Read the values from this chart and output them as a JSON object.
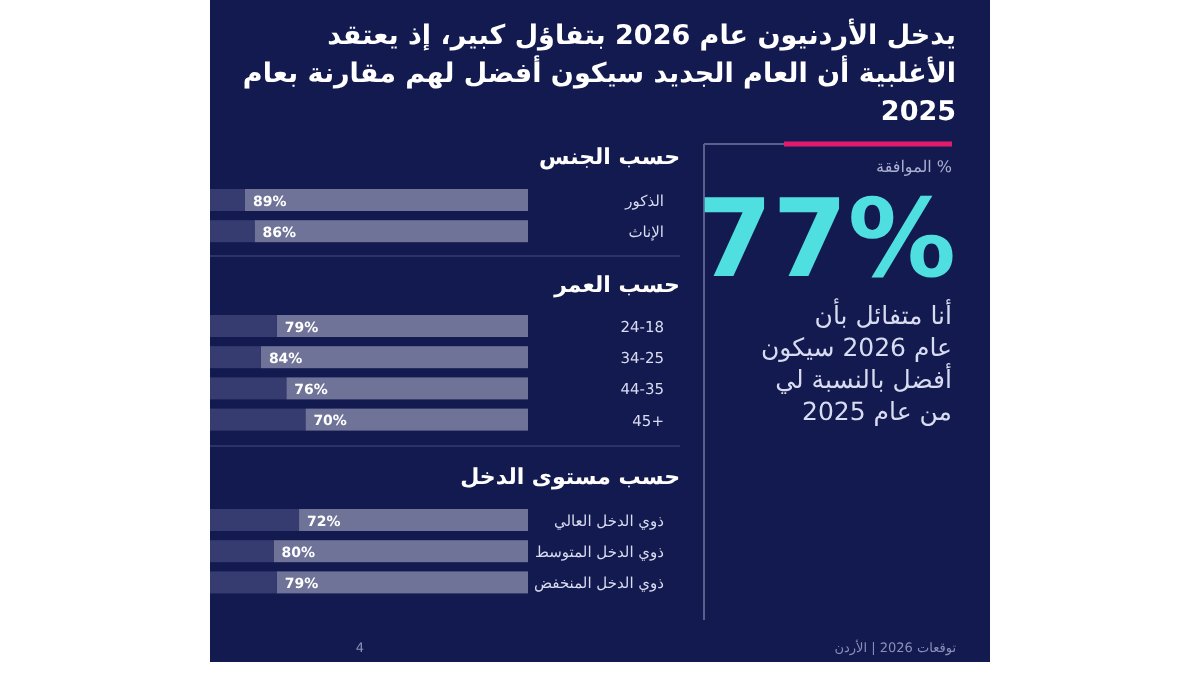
{
  "chart_data": [
    {
      "type": "other",
      "title": "يدخل الأردنيون عام 2026 بتفاؤل كبير، إذ يعتقد الأغلبية أن العام الجديد سيكون أفضل لهم مقارنة بعام 2025",
      "annotations": [
        "% الموافقة",
        "77%",
        "أنا متفائل بأن عام 2026 سيكون أفضل بالنسبة لي من عام 2025",
        "توقعات 2026 | الأردن",
        "4"
      ]
    },
    {
      "type": "bar",
      "orientation": "horizontal",
      "stacked": true,
      "title": "حسب الجنس",
      "categories": [
        "الذكور",
        "الإناث"
      ],
      "series": [
        {
          "color": "#6f7398",
          "values": [
            89,
            86
          ],
          "value_labels": [
            "89%",
            "86%"
          ]
        },
        {
          "color": "#363c70",
          "values": [
            11,
            14
          ]
        }
      ]
    },
    {
      "type": "bar",
      "orientation": "horizontal",
      "stacked": true,
      "title": "حسب العمر",
      "categories": [
        "24-18",
        "34-25",
        "44-35",
        "+45"
      ],
      "series": [
        {
          "color": "#6f7398",
          "values": [
            79,
            84,
            76,
            70
          ],
          "value_labels": [
            "79%",
            "84%",
            "76%",
            "70%"
          ]
        },
        {
          "color": "#363c70",
          "values": [
            21,
            16,
            24,
            30
          ]
        }
      ]
    },
    {
      "type": "bar",
      "orientation": "horizontal",
      "stacked": true,
      "title": "حسب مستوى الدخل",
      "categories": [
        "ذوي الدخل العالي",
        "ذوي الدخل المتوسط",
        "ذوي الدخل المنخفض"
      ],
      "series": [
        {
          "color": "#6f7398",
          "values": [
            72,
            80,
            79
          ],
          "value_labels": [
            "72%",
            "80%",
            "79%"
          ]
        },
        {
          "color": "#363c70",
          "values": [
            28,
            20,
            21
          ]
        }
      ]
    }
  ]
}
